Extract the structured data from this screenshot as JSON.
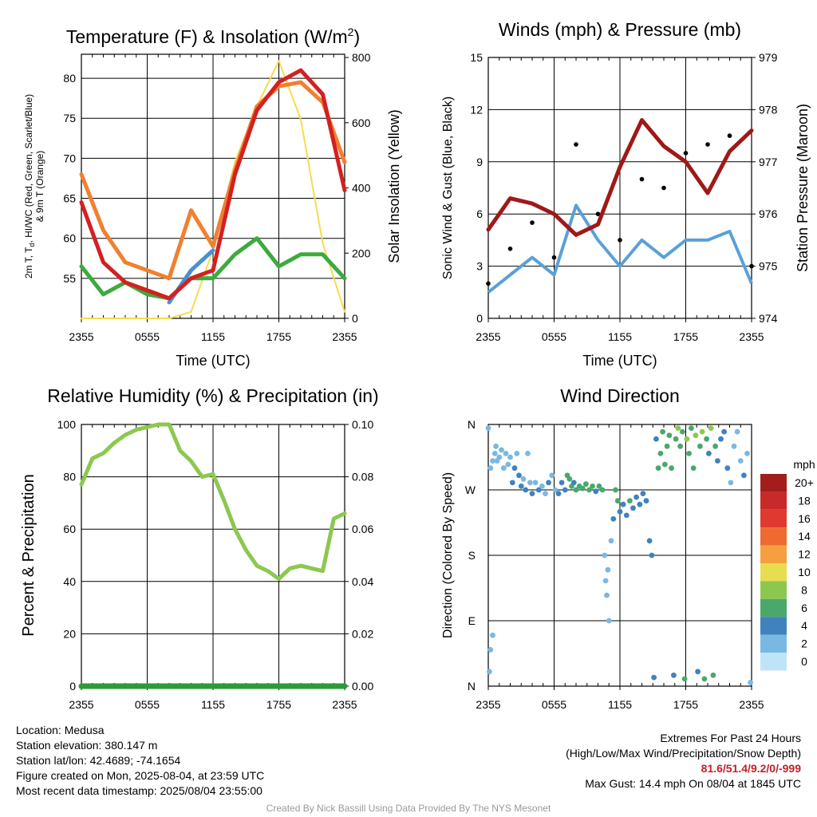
{
  "colors": {
    "temp_red": "#d42020",
    "dewpoint_green": "#3daa3d",
    "windchill_blue": "#4a90d0",
    "temp9m_orange": "#f08030",
    "solar_yellow": "#f5dc50",
    "wind_blue": "#5aa0d8",
    "gust_black": "#000000",
    "pressure_maroon": "#a01818",
    "rh_green": "#8cc850",
    "precip_green": "#2f9a3a",
    "grid": "#000000"
  },
  "x_ticks": [
    "2355",
    "0555",
    "1155",
    "1755",
    "2355"
  ],
  "chart_data": [
    {
      "id": "temperature",
      "type": "line",
      "title": "Temperature (F) & Insolation (W/m",
      "title_sup": "2",
      "title_end": ")",
      "xlabel": "Time (UTC)",
      "ylabel_line1": "2m T, T",
      "ylabel_sub": "d",
      "ylabel_line1_end": ", HI/WC (Red, Green, Scarlet/Blue)",
      "ylabel_line2": "& 9m T (Orange)",
      "y2label": "Solar Insolation (Yellow)",
      "x": [
        0,
        2,
        4,
        6,
        8,
        10,
        12,
        14,
        16,
        18,
        20,
        22,
        24
      ],
      "ylim": [
        50,
        83
      ],
      "y_ticks": [
        55,
        60,
        65,
        70,
        75,
        80
      ],
      "y2lim": [
        0,
        810
      ],
      "y2_ticks": [
        0,
        200,
        400,
        600,
        800
      ],
      "series": [
        {
          "name": "2m T",
          "color_key": "temp_red",
          "axis": "left",
          "values": [
            64.5,
            57,
            54.5,
            53.5,
            52.5,
            55,
            56,
            68,
            76,
            79.5,
            81,
            78,
            66
          ]
        },
        {
          "name": "9m T",
          "color_key": "temp9m_orange",
          "axis": "left",
          "values": [
            68,
            61,
            57,
            56,
            55,
            63.5,
            59,
            68.5,
            76.5,
            79,
            79.5,
            77,
            69.5
          ]
        },
        {
          "name": "Td",
          "color_key": "dewpoint_green",
          "axis": "left",
          "values": [
            56.5,
            53,
            54.5,
            53,
            52.5,
            55,
            55,
            58,
            60,
            56.5,
            58,
            58,
            55
          ]
        },
        {
          "name": "WC",
          "color_key": "windchill_blue",
          "axis": "left",
          "values": [
            null,
            null,
            null,
            null,
            52,
            56,
            58.5,
            null,
            null,
            null,
            null,
            null,
            null
          ]
        },
        {
          "name": "Solar",
          "color_key": "solar_yellow",
          "axis": "right",
          "values": [
            0,
            0,
            0,
            0,
            0,
            20,
            210,
            480,
            650,
            790,
            610,
            230,
            20
          ]
        }
      ]
    },
    {
      "id": "winds",
      "type": "line",
      "title": "Winds (mph) & Pressure (mb)",
      "xlabel": "Time (UTC)",
      "ylabel": "Sonic Wind & Gust (Blue, Black)",
      "y2label": "Station Pressure (Maroon)",
      "x": [
        0,
        2,
        4,
        6,
        8,
        10,
        12,
        14,
        16,
        18,
        20,
        22,
        24
      ],
      "ylim": [
        0,
        15
      ],
      "y_ticks": [
        0,
        3,
        6,
        9,
        12,
        15
      ],
      "y2lim": [
        974,
        979
      ],
      "y2_ticks": [
        974,
        975,
        976,
        977,
        978,
        979
      ],
      "series": [
        {
          "name": "Sonic Wind",
          "color_key": "wind_blue",
          "axis": "left",
          "values": [
            1.5,
            2.5,
            3.5,
            2.5,
            6.5,
            4.5,
            3,
            4.5,
            3.5,
            4.5,
            4.5,
            5,
            2
          ]
        },
        {
          "name": "Gust",
          "color_key": "gust_black",
          "axis": "left",
          "values": [
            2,
            4,
            5.5,
            3.5,
            10,
            6,
            4.5,
            8,
            7.5,
            9.5,
            10,
            10.5,
            3
          ]
        },
        {
          "name": "Pressure",
          "color_key": "pressure_maroon",
          "axis": "right",
          "values": [
            975.7,
            976.3,
            976.2,
            976.0,
            975.6,
            975.8,
            976.9,
            977.8,
            977.3,
            977.0,
            976.4,
            977.2,
            977.6
          ]
        }
      ]
    },
    {
      "id": "humidity",
      "type": "line",
      "title": "Relative Humidity (%) & Precipitation (in)",
      "xlabel": "",
      "ylabel": "Percent & Precipitation",
      "x": [
        0,
        1,
        2,
        3,
        4,
        5,
        6,
        7,
        8,
        9,
        10,
        11,
        12,
        13,
        14,
        15,
        16,
        17,
        18,
        19,
        20,
        21,
        22,
        23,
        24
      ],
      "ylim": [
        0,
        100
      ],
      "y_ticks": [
        0,
        20,
        40,
        60,
        80,
        100
      ],
      "y2lim": [
        0,
        0.1
      ],
      "y2_ticks": [
        "0.00",
        "0.02",
        "0.04",
        "0.06",
        "0.08",
        "0.10"
      ],
      "series": [
        {
          "name": "RH",
          "color_key": "rh_green",
          "axis": "left",
          "values": [
            77,
            87,
            89,
            93,
            96,
            98,
            99,
            100,
            100,
            90,
            86,
            80,
            81,
            71,
            60,
            52,
            46,
            44,
            41,
            45,
            46,
            45,
            44,
            64,
            66
          ]
        },
        {
          "name": "Precipitation",
          "color_key": "precip_green",
          "axis": "right",
          "values": [
            0,
            0,
            0,
            0,
            0,
            0,
            0,
            0,
            0,
            0,
            0,
            0,
            0,
            0,
            0,
            0,
            0,
            0,
            0,
            0,
            0,
            0,
            0,
            0,
            0
          ]
        }
      ]
    },
    {
      "id": "direction",
      "type": "scatter",
      "title": "Wind Direction",
      "ylabel": "Direction (Colored By Speed)",
      "y_ticks": [
        "N",
        "E",
        "S",
        "W",
        "N"
      ],
      "ylim": [
        0,
        360
      ],
      "legend_title": "mph",
      "legend_labels": [
        "20+",
        "18",
        "16",
        "14",
        "12",
        "10",
        "8",
        "6",
        "4",
        "2",
        "0"
      ],
      "legend_colors": [
        "#a31d1d",
        "#c82a2a",
        "#e03a30",
        "#ee6a30",
        "#f5a040",
        "#e8dc50",
        "#8cc850",
        "#4aa86a",
        "#3f82be",
        "#7ab8e4",
        "#bfe4f8"
      ],
      "points": [
        {
          "x": 0.0,
          "dir": 355,
          "speed": 2
        },
        {
          "x": 0.1,
          "dir": 20,
          "speed": 2
        },
        {
          "x": 0.2,
          "dir": 300,
          "speed": 1
        },
        {
          "x": 0.2,
          "dir": 50,
          "speed": 2
        },
        {
          "x": 0.4,
          "dir": 310,
          "speed": 2
        },
        {
          "x": 0.4,
          "dir": 70,
          "speed": 1
        },
        {
          "x": 0.6,
          "dir": 320,
          "speed": 1
        },
        {
          "x": 0.7,
          "dir": 330,
          "speed": 1
        },
        {
          "x": 0.8,
          "dir": 310,
          "speed": 1
        },
        {
          "x": 1.0,
          "dir": 315,
          "speed": 1
        },
        {
          "x": 1.2,
          "dir": 325,
          "speed": 1
        },
        {
          "x": 1.4,
          "dir": 300,
          "speed": 1
        },
        {
          "x": 1.6,
          "dir": 320,
          "speed": 2
        },
        {
          "x": 1.8,
          "dir": 305,
          "speed": 2
        },
        {
          "x": 2.0,
          "dir": 315,
          "speed": 1
        },
        {
          "x": 2.2,
          "dir": 280,
          "speed": 4
        },
        {
          "x": 2.4,
          "dir": 300,
          "speed": 3
        },
        {
          "x": 2.6,
          "dir": 320,
          "speed": 2
        },
        {
          "x": 2.8,
          "dir": 290,
          "speed": 3
        },
        {
          "x": 3.0,
          "dir": 275,
          "speed": 3
        },
        {
          "x": 3.2,
          "dir": 285,
          "speed": 2
        },
        {
          "x": 3.4,
          "dir": 270,
          "speed": 3
        },
        {
          "x": 3.6,
          "dir": 320,
          "speed": 1
        },
        {
          "x": 3.8,
          "dir": 280,
          "speed": 2
        },
        {
          "x": 4.0,
          "dir": 265,
          "speed": 3
        },
        {
          "x": 4.3,
          "dir": 280,
          "speed": 2
        },
        {
          "x": 4.6,
          "dir": 270,
          "speed": 3
        },
        {
          "x": 4.9,
          "dir": 275,
          "speed": 2
        },
        {
          "x": 5.2,
          "dir": 265,
          "speed": 2
        },
        {
          "x": 5.5,
          "dir": 280,
          "speed": 3
        },
        {
          "x": 5.8,
          "dir": 290,
          "speed": 2
        },
        {
          "x": 6.1,
          "dir": 270,
          "speed": 2
        },
        {
          "x": 6.4,
          "dir": 265,
          "speed": 3
        },
        {
          "x": 6.7,
          "dir": 280,
          "speed": 3
        },
        {
          "x": 7.0,
          "dir": 270,
          "speed": 4
        },
        {
          "x": 7.2,
          "dir": 290,
          "speed": 5
        },
        {
          "x": 7.4,
          "dir": 285,
          "speed": 6
        },
        {
          "x": 7.6,
          "dir": 275,
          "speed": 5
        },
        {
          "x": 7.8,
          "dir": 280,
          "speed": 4
        },
        {
          "x": 8.0,
          "dir": 270,
          "speed": 6
        },
        {
          "x": 8.3,
          "dir": 275,
          "speed": 6
        },
        {
          "x": 8.6,
          "dir": 272,
          "speed": 5
        },
        {
          "x": 8.9,
          "dir": 278,
          "speed": 6
        },
        {
          "x": 9.2,
          "dir": 270,
          "speed": 6
        },
        {
          "x": 9.5,
          "dir": 275,
          "speed": 5
        },
        {
          "x": 9.8,
          "dir": 268,
          "speed": 4
        },
        {
          "x": 10.1,
          "dir": 275,
          "speed": 6
        },
        {
          "x": 10.4,
          "dir": 270,
          "speed": 5
        },
        {
          "x": 10.6,
          "dir": 180,
          "speed": 1
        },
        {
          "x": 10.7,
          "dir": 145,
          "speed": 1
        },
        {
          "x": 10.8,
          "dir": 125,
          "speed": 1
        },
        {
          "x": 10.9,
          "dir": 160,
          "speed": 1
        },
        {
          "x": 11.0,
          "dir": 90,
          "speed": 1
        },
        {
          "x": 11.2,
          "dir": 200,
          "speed": 2
        },
        {
          "x": 11.4,
          "dir": 230,
          "speed": 3
        },
        {
          "x": 11.6,
          "dir": 270,
          "speed": 6
        },
        {
          "x": 11.8,
          "dir": 255,
          "speed": 5
        },
        {
          "x": 12.0,
          "dir": 240,
          "speed": 4
        },
        {
          "x": 12.3,
          "dir": 250,
          "speed": 4
        },
        {
          "x": 12.6,
          "dir": 235,
          "speed": 4
        },
        {
          "x": 12.9,
          "dir": 255,
          "speed": 5
        },
        {
          "x": 13.2,
          "dir": 245,
          "speed": 4
        },
        {
          "x": 13.5,
          "dir": 260,
          "speed": 4
        },
        {
          "x": 13.8,
          "dir": 250,
          "speed": 4
        },
        {
          "x": 14.1,
          "dir": 265,
          "speed": 4
        },
        {
          "x": 14.4,
          "dir": 255,
          "speed": 4
        },
        {
          "x": 14.7,
          "dir": 200,
          "speed": 3
        },
        {
          "x": 14.9,
          "dir": 180,
          "speed": 3
        },
        {
          "x": 15.1,
          "dir": 12,
          "speed": 3
        },
        {
          "x": 15.3,
          "dir": 340,
          "speed": 4
        },
        {
          "x": 15.5,
          "dir": 300,
          "speed": 5
        },
        {
          "x": 15.7,
          "dir": 320,
          "speed": 5
        },
        {
          "x": 15.9,
          "dir": 350,
          "speed": 6
        },
        {
          "x": 16.1,
          "dir": 305,
          "speed": 5
        },
        {
          "x": 16.3,
          "dir": 330,
          "speed": 6
        },
        {
          "x": 16.5,
          "dir": 345,
          "speed": 6
        },
        {
          "x": 16.7,
          "dir": 300,
          "speed": 5
        },
        {
          "x": 16.9,
          "dir": 15,
          "speed": 4
        },
        {
          "x": 17.1,
          "dir": 340,
          "speed": 6
        },
        {
          "x": 17.3,
          "dir": 355,
          "speed": 7
        },
        {
          "x": 17.5,
          "dir": 330,
          "speed": 6
        },
        {
          "x": 17.7,
          "dir": 350,
          "speed": 5
        },
        {
          "x": 17.9,
          "dir": 10,
          "speed": 5
        },
        {
          "x": 18.1,
          "dir": 340,
          "speed": 7
        },
        {
          "x": 18.3,
          "dir": 320,
          "speed": 6
        },
        {
          "x": 18.5,
          "dir": 355,
          "speed": 6
        },
        {
          "x": 18.7,
          "dir": 300,
          "speed": 5
        },
        {
          "x": 18.9,
          "dir": 345,
          "speed": 7
        },
        {
          "x": 19.1,
          "dir": 20,
          "speed": 4
        },
        {
          "x": 19.3,
          "dir": 330,
          "speed": 6
        },
        {
          "x": 19.5,
          "dir": 350,
          "speed": 7
        },
        {
          "x": 19.7,
          "dir": 10,
          "speed": 6
        },
        {
          "x": 19.9,
          "dir": 340,
          "speed": 5
        },
        {
          "x": 20.1,
          "dir": 320,
          "speed": 4
        },
        {
          "x": 20.3,
          "dir": 355,
          "speed": 7
        },
        {
          "x": 20.5,
          "dir": 15,
          "speed": 5
        },
        {
          "x": 20.7,
          "dir": 330,
          "speed": 5
        },
        {
          "x": 20.9,
          "dir": 310,
          "speed": 4
        },
        {
          "x": 21.2,
          "dir": 340,
          "speed": 4
        },
        {
          "x": 21.5,
          "dir": 350,
          "speed": 3
        },
        {
          "x": 21.8,
          "dir": 300,
          "speed": 3
        },
        {
          "x": 22.1,
          "dir": 280,
          "speed": 2
        },
        {
          "x": 22.4,
          "dir": 330,
          "speed": 2
        },
        {
          "x": 22.7,
          "dir": 350,
          "speed": 1
        },
        {
          "x": 23.0,
          "dir": 310,
          "speed": 2
        },
        {
          "x": 23.3,
          "dir": 290,
          "speed": 3
        },
        {
          "x": 23.6,
          "dir": 320,
          "speed": 2
        },
        {
          "x": 23.9,
          "dir": 5,
          "speed": 1
        }
      ]
    }
  ],
  "footer": {
    "location": "Location: Medusa",
    "elevation": "Station elevation: 380.147 m",
    "latlon": "Station lat/lon: 42.4689; -74.1654",
    "created": "Figure created on Mon, 2025-08-04, at 23:59 UTC",
    "recent": "Most recent data timestamp: 2025/08/04 23:55:00",
    "extremes_title": "Extremes For Past 24 Hours",
    "extremes_subtitle": "(High/Low/Max Wind/Precipitation/Snow Depth)",
    "extremes_values": "81.6/51.4/9.2/0/-999",
    "max_gust": "Max Gust: 14.4 mph On 08/04 at 1845 UTC",
    "credit": "Created By Nick Bassill Using Data Provided By The NYS Mesonet"
  }
}
